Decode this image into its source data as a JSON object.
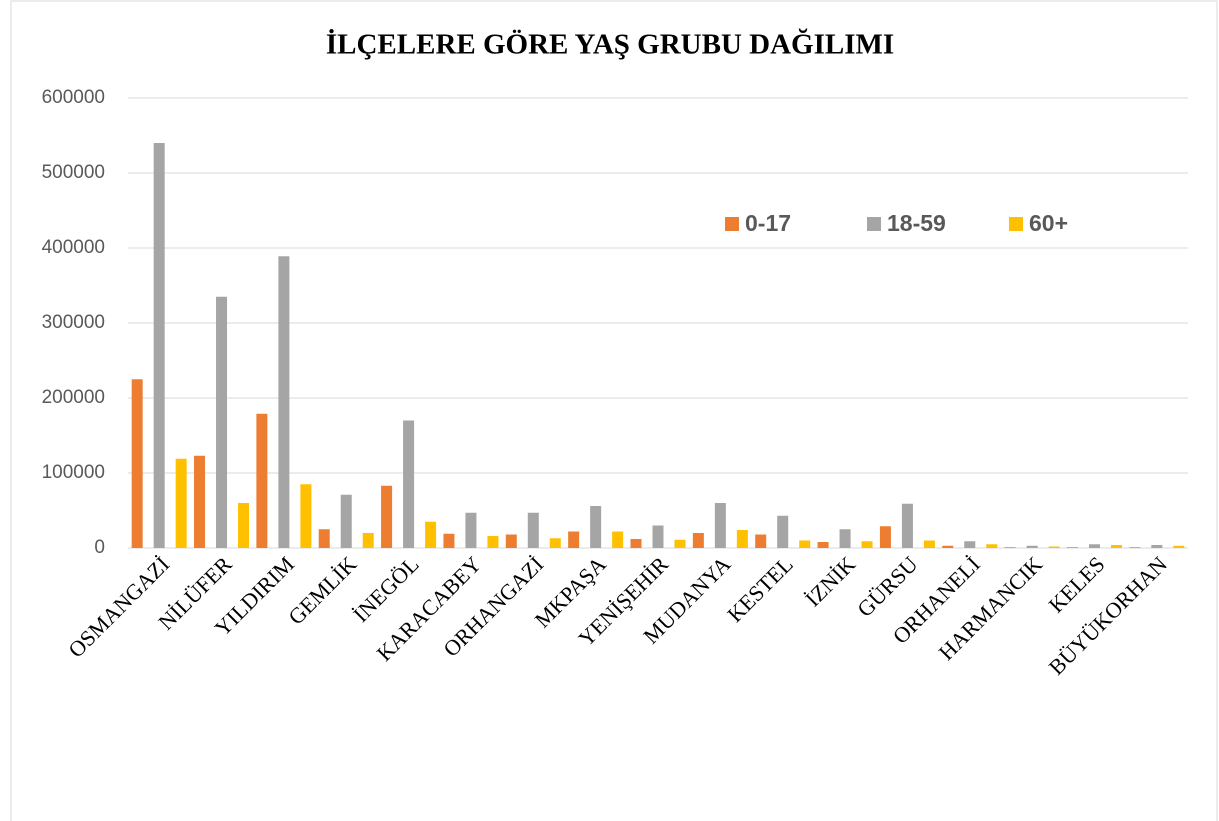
{
  "chart_data": {
    "type": "bar",
    "title": "İLÇELERE GÖRE YAŞ GRUBU DAĞILIMI",
    "categories": [
      "OSMANGAZİ",
      "NİLÜFER",
      "YILDIRIM",
      "GEMLİK",
      "İNEGÖL",
      "KARACABEY",
      "ORHANGAZİ",
      "MKPAŞA",
      "YENİŞEHİR",
      "MUDANYA",
      "KESTEL",
      "İZNİK",
      "GÜRSU",
      "ORHANELİ",
      "HARMANCIK",
      "KELES",
      "BÜYÜKORHAN"
    ],
    "series": [
      {
        "name": "0-17",
        "color": "#ed7d31",
        "values": [
          225000,
          123000,
          179000,
          25000,
          83000,
          19000,
          18000,
          22000,
          12000,
          20000,
          18000,
          8000,
          29000,
          3000,
          1000,
          1000,
          1000
        ]
      },
      {
        "name": "18-59",
        "color": "#a5a5a5",
        "values": [
          540000,
          335000,
          389000,
          71000,
          170000,
          47000,
          47000,
          56000,
          30000,
          60000,
          43000,
          25000,
          59000,
          9000,
          3000,
          5000,
          4000
        ]
      },
      {
        "name": "60+",
        "color": "#ffc000",
        "values": [
          119000,
          60000,
          85000,
          20000,
          35000,
          16000,
          13000,
          22000,
          11000,
          24000,
          10000,
          9000,
          10000,
          5000,
          2000,
          4000,
          3000
        ]
      }
    ],
    "ylim": [
      0,
      600000
    ],
    "yticks": [
      0,
      100000,
      200000,
      300000,
      400000,
      500000,
      600000
    ],
    "grid": true,
    "legend": "top-right"
  }
}
